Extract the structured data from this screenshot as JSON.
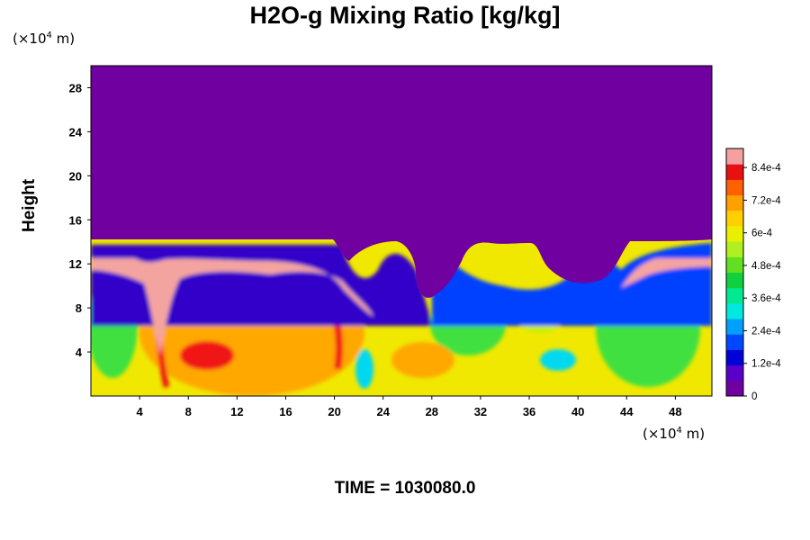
{
  "chart_data": {
    "type": "heatmap",
    "title": "H2O-g Mixing Ratio [kg/kg]",
    "ylabel": "Height",
    "x_unit": {
      "prefix": "(×10",
      "exp": "4",
      "suffix": " m)"
    },
    "y_unit": {
      "prefix": "(×10",
      "exp": "4",
      "suffix": " m)"
    },
    "xlim": [
      0,
      51
    ],
    "ylim": [
      0,
      30
    ],
    "x_ticks": [
      "4",
      "8",
      "12",
      "16",
      "20",
      "24",
      "28",
      "32",
      "36",
      "40",
      "44",
      "48"
    ],
    "y_ticks": [
      "4",
      "8",
      "12",
      "16",
      "20",
      "24",
      "28"
    ],
    "colorbar": {
      "min": 0,
      "max": 0.00091,
      "labels": [
        "0",
        "1.2e-4",
        "2.4e-4",
        "3.6e-4",
        "4.8e-4",
        "6e-4",
        "7.2e-4",
        "8.4e-4"
      ],
      "colors": [
        "#7000a0",
        "#5a00c8",
        "#0000d8",
        "#0048ff",
        "#00a0ff",
        "#00e8e0",
        "#00e890",
        "#10d040",
        "#60e020",
        "#b0f020",
        "#e8f000",
        "#ffd000",
        "#ffa000",
        "#ff6000",
        "#e81010",
        "#f4a0a0"
      ]
    },
    "field_description_colors": {
      "dry_upper": "#7000a0",
      "boundary_dark": "#3000c8",
      "boundary_blue": "#0040ff",
      "cyan": "#00d8f0",
      "green": "#40e040",
      "yellow_green": "#c8f000",
      "yellow": "#f0e800",
      "orange": "#ffa800",
      "red": "#f01818",
      "pink": "#f4a4a0"
    }
  },
  "footer": {
    "time_label": "TIME = 1030080.0"
  }
}
